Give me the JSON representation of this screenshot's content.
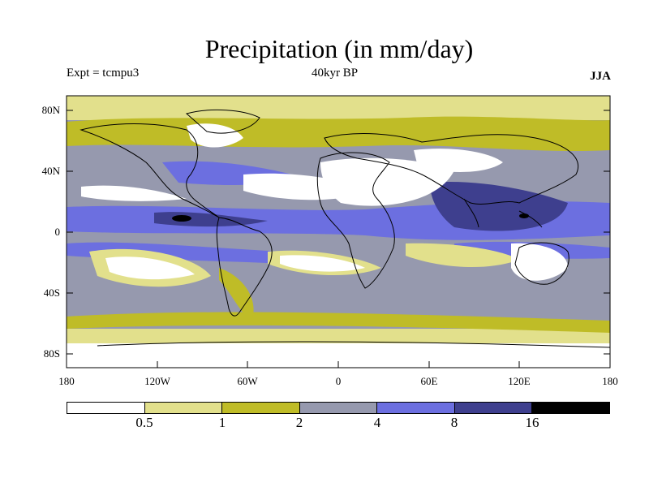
{
  "title": "Precipitation (in mm/day)",
  "expt_label": "Expt = tcmpu3",
  "period_label": "40kyr BP",
  "season_label": "JJA",
  "lat_labels": [
    "80N",
    "40N",
    "0",
    "40S",
    "80S"
  ],
  "lon_labels": [
    "180",
    "120W",
    "60W",
    "0",
    "60E",
    "120E",
    "180"
  ],
  "colorbar": {
    "labels": [
      "0.5",
      "1",
      "2",
      "4",
      "8",
      "16"
    ],
    "colors": [
      "#ffffff",
      "#e2e08c",
      "#bfbc27",
      "#9699ae",
      "#6c6fe0",
      "#3e3f8e",
      "#000000"
    ]
  }
}
